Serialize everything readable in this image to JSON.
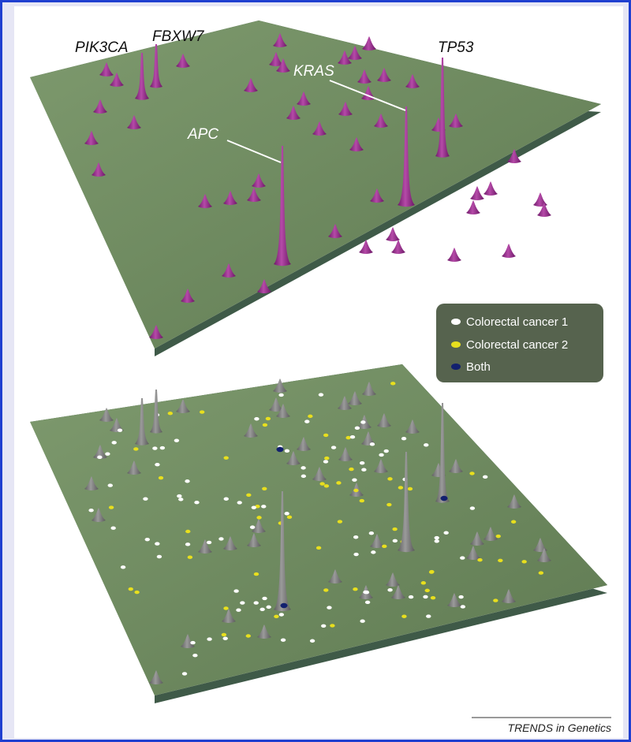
{
  "labels": {
    "pik3ca": "PIK3CA",
    "fbxw7": "FBXW7",
    "kras": "KRAS",
    "tp53": "TP53",
    "apc": "APC"
  },
  "legend": {
    "items": [
      "Colorectal cancer 1",
      "Colorectal cancer 2",
      "Both"
    ]
  },
  "footer": "TRENDS in Genetics"
}
